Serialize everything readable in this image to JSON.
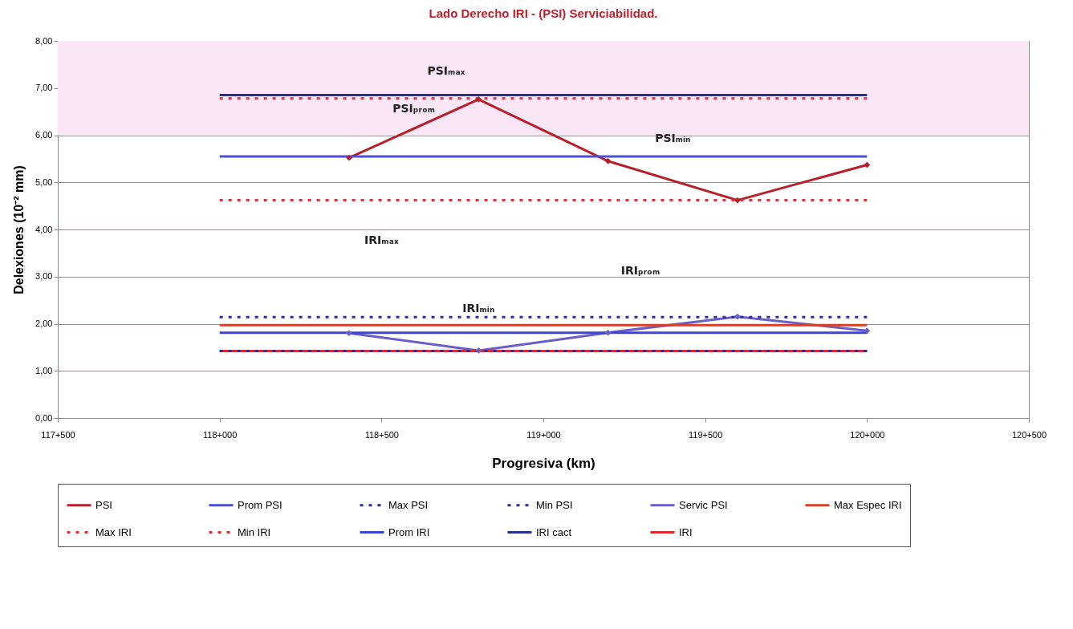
{
  "chart_data": {
    "type": "line",
    "title": "Lado Derecho IRI  -  (PSI) Serviciabilidad.",
    "xlabel": "Progresiva (km)",
    "ylabel": "Delexiones (10⁻² mm)",
    "categories": [
      "117+500",
      null,
      null,
      null,
      null,
      "118+000",
      null,
      null,
      null,
      null,
      "118+500",
      null,
      null,
      null,
      null,
      "119+000",
      null,
      null,
      null,
      null,
      "119+500",
      null,
      null,
      null,
      null,
      "120+000",
      null,
      null,
      null,
      null,
      "120+500"
    ],
    "ylim": [
      0,
      8
    ],
    "yticks": [
      {
        "value": 0,
        "label": "0,00"
      },
      {
        "value": 1,
        "label": "1,00"
      },
      {
        "value": 2,
        "label": "2,00"
      },
      {
        "value": 3,
        "label": "3,00"
      },
      {
        "value": 4,
        "label": "4,00"
      },
      {
        "value": 5,
        "label": "5,00"
      },
      {
        "value": 6,
        "label": "6,00"
      },
      {
        "value": 7,
        "label": "7,00"
      },
      {
        "value": 8,
        "label": "8,00"
      }
    ],
    "grid": "y",
    "legend": "bottom",
    "bands": [
      {
        "axis": "y",
        "from": 6,
        "to": 8,
        "color": "#f9e6f7"
      }
    ],
    "series": [
      {
        "name": "PSI",
        "color": "#b5202a",
        "line_style": "solid",
        "marker": "diamond",
        "values": [
          null,
          null,
          null,
          null,
          null,
          null,
          null,
          null,
          null,
          5.52,
          null,
          null,
          null,
          6.76,
          null,
          null,
          null,
          5.45,
          null,
          null,
          null,
          4.62,
          null,
          null,
          null,
          5.37,
          null,
          null,
          null,
          null,
          null
        ]
      },
      {
        "name": "Prom PSI",
        "color": "#4c4fd0",
        "line_style": "solid",
        "marker": "none",
        "values": [
          null,
          null,
          null,
          null,
          null,
          5.55,
          5.55,
          5.55,
          5.55,
          5.55,
          5.55,
          5.55,
          5.55,
          5.55,
          5.55,
          5.55,
          5.55,
          5.55,
          5.55,
          5.55,
          5.55,
          5.55,
          5.55,
          5.55,
          5.55,
          5.55,
          null,
          null,
          null,
          null,
          null
        ]
      },
      {
        "name": "Max PSI",
        "color": "#2b2f9a",
        "line_style": "dotted",
        "marker": "none",
        "values": [
          null,
          null,
          null,
          null,
          null,
          2.14,
          2.14,
          2.14,
          2.14,
          2.14,
          2.14,
          2.14,
          2.14,
          2.14,
          2.14,
          2.14,
          2.14,
          2.14,
          2.14,
          2.14,
          2.14,
          2.14,
          2.14,
          2.14,
          2.14,
          2.14,
          null,
          null,
          null,
          null,
          null
        ]
      },
      {
        "name": "Min PSI",
        "color": "#2b2f9a",
        "line_style": "dotted",
        "marker": "none",
        "values": [
          null,
          null,
          null,
          null,
          null,
          1.42,
          1.42,
          1.42,
          1.42,
          1.42,
          1.42,
          1.42,
          1.42,
          1.42,
          1.42,
          1.42,
          1.42,
          1.42,
          1.42,
          1.42,
          1.42,
          1.42,
          1.42,
          1.42,
          1.42,
          1.42,
          null,
          null,
          null,
          null,
          null
        ]
      },
      {
        "name": "Servic PSI",
        "color": "#6a5fc8",
        "line_style": "solid",
        "marker": "diamond",
        "values": [
          null,
          null,
          null,
          null,
          null,
          null,
          null,
          null,
          null,
          1.8,
          null,
          null,
          null,
          1.43,
          null,
          null,
          null,
          1.81,
          null,
          null,
          null,
          2.15,
          null,
          null,
          null,
          1.85,
          null,
          null,
          null,
          null,
          null
        ]
      },
      {
        "name": "Max Espec IRI",
        "color": "#d6402a",
        "line_style": "solid",
        "marker": "none",
        "values": [
          null,
          null,
          null,
          null,
          null,
          1.97,
          1.97,
          1.97,
          1.97,
          1.97,
          1.97,
          1.97,
          1.97,
          1.97,
          1.97,
          1.97,
          1.97,
          1.97,
          1.97,
          1.97,
          1.97,
          1.97,
          1.97,
          1.97,
          1.97,
          1.97,
          null,
          null,
          null,
          null,
          null
        ]
      },
      {
        "name": "Max IRI",
        "color": "#e0303a",
        "line_style": "dotted",
        "marker": "none",
        "values": [
          null,
          null,
          null,
          null,
          null,
          6.78,
          6.78,
          6.78,
          6.78,
          6.78,
          6.78,
          6.78,
          6.78,
          6.78,
          6.78,
          6.78,
          6.78,
          6.78,
          6.78,
          6.78,
          6.78,
          6.78,
          6.78,
          6.78,
          6.78,
          6.78,
          null,
          null,
          null,
          null,
          null
        ]
      },
      {
        "name": "Min IRI",
        "color": "#e0303a",
        "line_style": "dotted",
        "marker": "none",
        "values": [
          null,
          null,
          null,
          null,
          null,
          4.62,
          4.62,
          4.62,
          4.62,
          4.62,
          4.62,
          4.62,
          4.62,
          4.62,
          4.62,
          4.62,
          4.62,
          4.62,
          4.62,
          4.62,
          4.62,
          4.62,
          4.62,
          4.62,
          4.62,
          4.62,
          null,
          null,
          null,
          null,
          null
        ]
      },
      {
        "name": "Prom IRI",
        "color": "#3c44d8",
        "line_style": "solid",
        "marker": "none",
        "values": [
          null,
          null,
          null,
          null,
          null,
          1.81,
          1.81,
          1.81,
          1.81,
          1.81,
          1.81,
          1.81,
          1.81,
          1.81,
          1.81,
          1.81,
          1.81,
          1.81,
          1.81,
          1.81,
          1.81,
          1.81,
          1.81,
          1.81,
          1.81,
          1.81,
          null,
          null,
          null,
          null,
          null
        ]
      },
      {
        "name": "IRI cact",
        "color": "#28308e",
        "line_style": "solid",
        "marker": "none",
        "values": [
          null,
          null,
          null,
          null,
          null,
          6.85,
          6.85,
          6.85,
          6.85,
          6.85,
          6.85,
          6.85,
          6.85,
          6.85,
          6.85,
          6.85,
          6.85,
          6.85,
          6.85,
          6.85,
          6.85,
          6.85,
          6.85,
          6.85,
          6.85,
          6.85,
          null,
          null,
          null,
          null,
          null
        ]
      },
      {
        "name": "IRI",
        "color": "#e02a30",
        "line_style": "solid",
        "marker": "none",
        "values": [
          null,
          null,
          null,
          null,
          null,
          1.42,
          1.42,
          1.42,
          1.42,
          1.42,
          1.42,
          1.42,
          1.42,
          1.42,
          1.42,
          1.42,
          1.42,
          1.42,
          1.42,
          1.42,
          1.42,
          1.42,
          1.42,
          1.42,
          1.42,
          1.42,
          null,
          null,
          null,
          null,
          null
        ]
      }
    ],
    "annotations": [
      "PSIₘₐₓ",
      "PSIₚᵣₒₘ",
      "PSIₘᵢₙ",
      "IRIₘₐₓ",
      "IRIₚᵣₒₘ",
      "IRIₘᵢₙ"
    ]
  }
}
